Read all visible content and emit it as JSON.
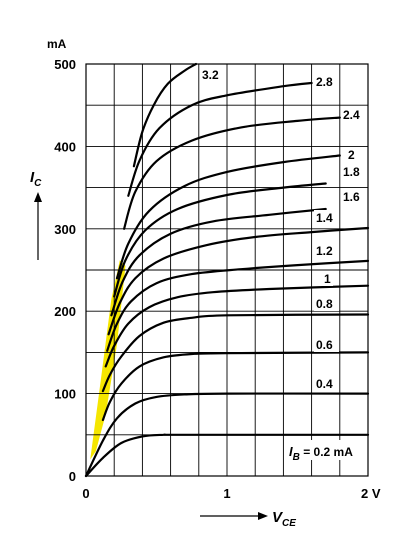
{
  "chart_data": {
    "type": "line",
    "title": "",
    "x_axis": {
      "symbol": "V",
      "subscript": "CE",
      "unit": "V",
      "range": [
        0,
        2
      ],
      "ticks": [
        {
          "value": 0,
          "label": "0"
        },
        {
          "value": 1,
          "label": "1"
        },
        {
          "value": 2,
          "label": "2 V"
        }
      ],
      "grid_step": 0.2
    },
    "y_axis": {
      "symbol": "I",
      "subscript": "C",
      "unit": "mA",
      "range": [
        0,
        500
      ],
      "ticks": [
        {
          "value": 0,
          "label": "0"
        },
        {
          "value": 100,
          "label": "100"
        },
        {
          "value": 200,
          "label": "200"
        },
        {
          "value": 300,
          "label": "300"
        },
        {
          "value": 400,
          "label": "400"
        },
        {
          "value": 500,
          "label": "500"
        }
      ],
      "grid_step": 50
    },
    "grid": true,
    "highlight": {
      "description": "saturation region",
      "color": "#f5e600"
    },
    "param_label": {
      "symbol": "I",
      "subscript": "B",
      "rest": " = 0.2 mA"
    },
    "series": [
      {
        "name": "0.2",
        "label": "",
        "points": [
          [
            0,
            0
          ],
          [
            0.12,
            22
          ],
          [
            0.25,
            40
          ],
          [
            0.4,
            48
          ],
          [
            0.55,
            50
          ],
          [
            0.7,
            50
          ],
          [
            2,
            50
          ]
        ]
      },
      {
        "name": "0.4",
        "label": "0.4",
        "points": [
          [
            0,
            0
          ],
          [
            0.12,
            43
          ],
          [
            0.22,
            70
          ],
          [
            0.35,
            88
          ],
          [
            0.5,
            96
          ],
          [
            0.7,
            99
          ],
          [
            1,
            100
          ],
          [
            2,
            100
          ]
        ]
      },
      {
        "name": "0.6",
        "label": "0.6",
        "points": [
          [
            0.12,
            68
          ],
          [
            0.17,
            90
          ],
          [
            0.25,
            112
          ],
          [
            0.38,
            133
          ],
          [
            0.55,
            144
          ],
          [
            0.75,
            148
          ],
          [
            1,
            149
          ],
          [
            2,
            150
          ]
        ]
      },
      {
        "name": "0.8",
        "label": "0.8",
        "points": [
          [
            0.12,
            103
          ],
          [
            0.17,
            123
          ],
          [
            0.25,
            145
          ],
          [
            0.38,
            170
          ],
          [
            0.55,
            186
          ],
          [
            0.75,
            192
          ],
          [
            1,
            195
          ],
          [
            2,
            196
          ]
        ]
      },
      {
        "name": "1",
        "label": "1",
        "points": [
          [
            0.14,
            133
          ],
          [
            0.2,
            158
          ],
          [
            0.3,
            185
          ],
          [
            0.45,
            205
          ],
          [
            0.65,
            217
          ],
          [
            0.9,
            223
          ],
          [
            1.3,
            227
          ],
          [
            2,
            231
          ]
        ]
      },
      {
        "name": "1.2",
        "label": "1.2",
        "points": [
          [
            0.15,
            152
          ],
          [
            0.22,
            185
          ],
          [
            0.32,
            212
          ],
          [
            0.5,
            234
          ],
          [
            0.75,
            245
          ],
          [
            1.1,
            251
          ],
          [
            1.5,
            256
          ],
          [
            2,
            261
          ]
        ]
      },
      {
        "name": "1.4",
        "label": "1.4",
        "points": [
          [
            0.16,
            172
          ],
          [
            0.24,
            210
          ],
          [
            0.35,
            240
          ],
          [
            0.55,
            264
          ],
          [
            0.85,
            280
          ],
          [
            1.2,
            290
          ],
          [
            1.6,
            296
          ],
          [
            2,
            301
          ]
        ]
      },
      {
        "name": "1.6",
        "label": "1.6",
        "points": [
          [
            0.18,
            195
          ],
          [
            0.26,
            236
          ],
          [
            0.38,
            268
          ],
          [
            0.6,
            294
          ],
          [
            0.9,
            309
          ],
          [
            1.3,
            317
          ],
          [
            1.7,
            324
          ]
        ]
      },
      {
        "name": "1.8",
        "label": "1.8",
        "points": [
          [
            0.2,
            218
          ],
          [
            0.28,
            262
          ],
          [
            0.42,
            298
          ],
          [
            0.65,
            324
          ],
          [
            1,
            341
          ],
          [
            1.4,
            350
          ],
          [
            1.7,
            355
          ]
        ]
      },
      {
        "name": "2",
        "label": "2",
        "points": [
          [
            0.22,
            240
          ],
          [
            0.3,
            282
          ],
          [
            0.45,
            322
          ],
          [
            0.7,
            352
          ],
          [
            1,
            369
          ],
          [
            1.4,
            381
          ],
          [
            1.8,
            389
          ]
        ]
      },
      {
        "name": "2.4",
        "label": "2.4",
        "points": [
          [
            0.27,
            300
          ],
          [
            0.35,
            345
          ],
          [
            0.5,
            382
          ],
          [
            0.75,
            407
          ],
          [
            1.1,
            423
          ],
          [
            1.5,
            431
          ],
          [
            1.8,
            435
          ]
        ]
      },
      {
        "name": "2.8",
        "label": "2.8",
        "points": [
          [
            0.3,
            340
          ],
          [
            0.38,
            383
          ],
          [
            0.52,
            422
          ],
          [
            0.75,
            450
          ],
          [
            1,
            462
          ],
          [
            1.4,
            473
          ],
          [
            1.6,
            477
          ]
        ]
      },
      {
        "name": "3.2",
        "label": "3.2",
        "points": [
          [
            0.34,
            376
          ],
          [
            0.4,
            418
          ],
          [
            0.48,
            450
          ],
          [
            0.58,
            476
          ],
          [
            0.7,
            492
          ],
          [
            0.78,
            500
          ]
        ]
      }
    ]
  }
}
